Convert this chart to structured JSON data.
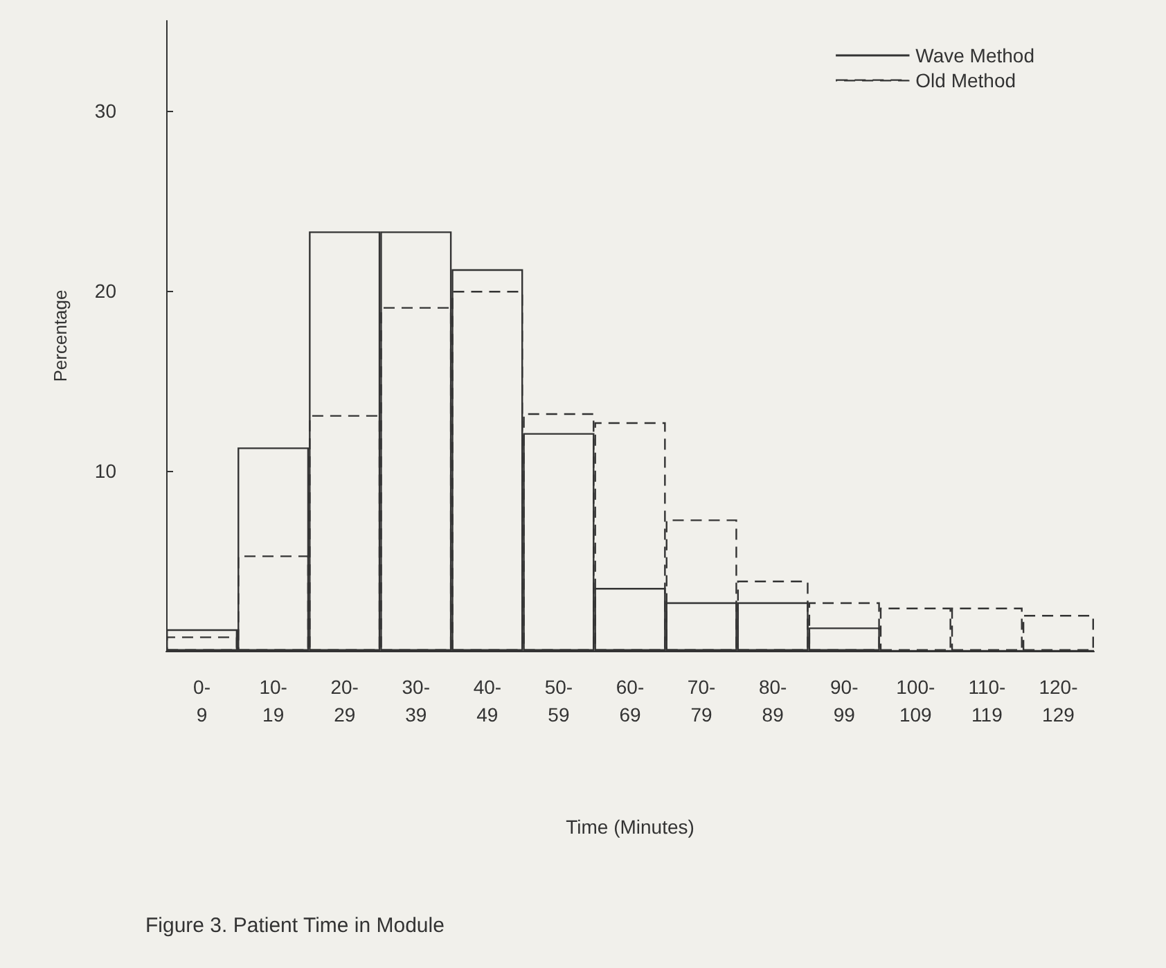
{
  "chart_data": {
    "type": "bar",
    "title": "Figure 3. Patient Time in Module",
    "xlabel": "Time (Minutes)",
    "ylabel": "Percentage",
    "categories": [
      "0-\n9",
      "10-\n19",
      "20-\n29",
      "30-\n39",
      "40-\n49",
      "50-\n59",
      "60-\n69",
      "70-\n79",
      "80-\n89",
      "90-\n99",
      "100-\n109",
      "110-\n119",
      "120-\n129"
    ],
    "series": [
      {
        "name": "Wave Method",
        "color": "#333333",
        "line_style": "solid",
        "values": [
          1.2,
          11.3,
          23.3,
          23.3,
          21.2,
          12.1,
          3.5,
          2.7,
          2.7,
          1.3,
          0,
          0,
          0
        ]
      },
      {
        "name": "Old Method",
        "color": "#333333",
        "line_style": "dashed",
        "values": [
          0.8,
          5.3,
          13.1,
          19.1,
          20,
          13.2,
          12.7,
          7.3,
          3.9,
          2.7,
          2.4,
          2.4,
          2
        ]
      }
    ],
    "ylim": [
      0,
      35
    ],
    "yticks": [
      10,
      20,
      30
    ],
    "legend": "top right",
    "grid": false
  }
}
